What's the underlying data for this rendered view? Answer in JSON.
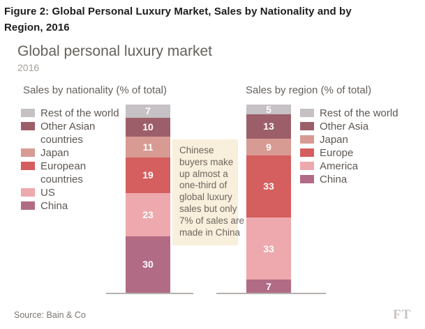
{
  "figure": {
    "title_line1": "Figure 2: Global Personal Luxury Market, Sales by Nationality and by",
    "title_line2": "Region, 2016"
  },
  "chart": {
    "title": "Global personal luxury market",
    "subtitle": "2016",
    "source": "Source: Bain & Co",
    "brand": "FT"
  },
  "annotation": {
    "text": "Chinese buyers make up almost a one-third of global luxury sales but only 7% of sales are made in China",
    "lines": [
      "Chinese",
      "buyers make",
      "up almost a",
      "one-third of",
      "global luxury",
      "sales but only",
      "7% of sales are",
      "made in China"
    ],
    "bg_color": "#f8efdc"
  },
  "colors": {
    "rest_of_world": "#c5c1c5",
    "other_asia": "#9c5f6a",
    "japan": "#d79b94",
    "europe": "#d55e5e",
    "america": "#eda9ad",
    "china": "#b26b84",
    "axis_line": "#b5b1ad"
  },
  "chart_data": [
    {
      "type": "bar",
      "variant": "stacked-vertical",
      "title": "Sales by nationality (% of total)",
      "unit": "% of total",
      "year": "2016",
      "legend_position": "left",
      "ylim": [
        0,
        100
      ],
      "segments_top_to_bottom": [
        {
          "label": "Rest of the world",
          "value": 7,
          "color": "#c5c1c5"
        },
        {
          "label": "Other Asian countries",
          "value": 10,
          "color": "#9c5f6a"
        },
        {
          "label": "Japan",
          "value": 11,
          "color": "#d79b94"
        },
        {
          "label": "European countries",
          "value": 19,
          "color": "#d55e5e"
        },
        {
          "label": "US",
          "value": 23,
          "color": "#eda9ad"
        },
        {
          "label": "China",
          "value": 30,
          "color": "#b26b84"
        }
      ]
    },
    {
      "type": "bar",
      "variant": "stacked-vertical",
      "title": "Sales by region (% of total)",
      "unit": "% of total",
      "year": "2016",
      "legend_position": "right",
      "ylim": [
        0,
        100
      ],
      "segments_top_to_bottom": [
        {
          "label": "Rest of the world",
          "value": 5,
          "color": "#c5c1c5"
        },
        {
          "label": "Other Asia",
          "value": 13,
          "color": "#9c5f6a"
        },
        {
          "label": "Japan",
          "value": 9,
          "color": "#d79b94"
        },
        {
          "label": "Europe",
          "value": 33,
          "color": "#d55e5e"
        },
        {
          "label": "America",
          "value": 33,
          "color": "#eda9ad"
        },
        {
          "label": "China",
          "value": 7,
          "color": "#b26b84"
        }
      ]
    }
  ]
}
